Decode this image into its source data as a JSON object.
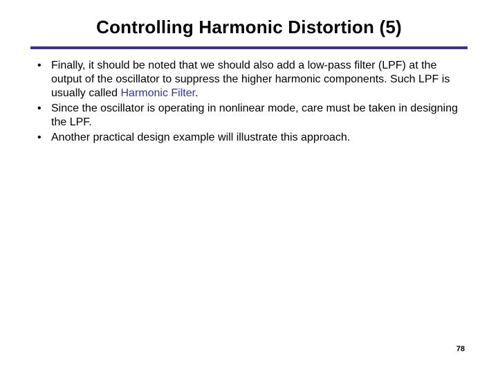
{
  "title": "Controlling Harmonic Distortion (5)",
  "rule_color": "#333399",
  "highlight_color": "#333399",
  "text_color": "#000000",
  "background_color": "#ffffff",
  "bullets": {
    "b1_pre": "Finally, it should be noted that we should also add a low-pass filter (LPF) at the output of the oscillator to suppress the higher harmonic components.  Such LPF is usually called ",
    "b1_hl": "Harmonic Filter",
    "b1_post": ".",
    "b2": "Since the oscillator is operating in nonlinear mode, care must be taken in designing the LPF.",
    "b3": "Another practical design example will illustrate this approach."
  },
  "page_number": "78",
  "title_fontsize": 26,
  "body_fontsize": 16
}
